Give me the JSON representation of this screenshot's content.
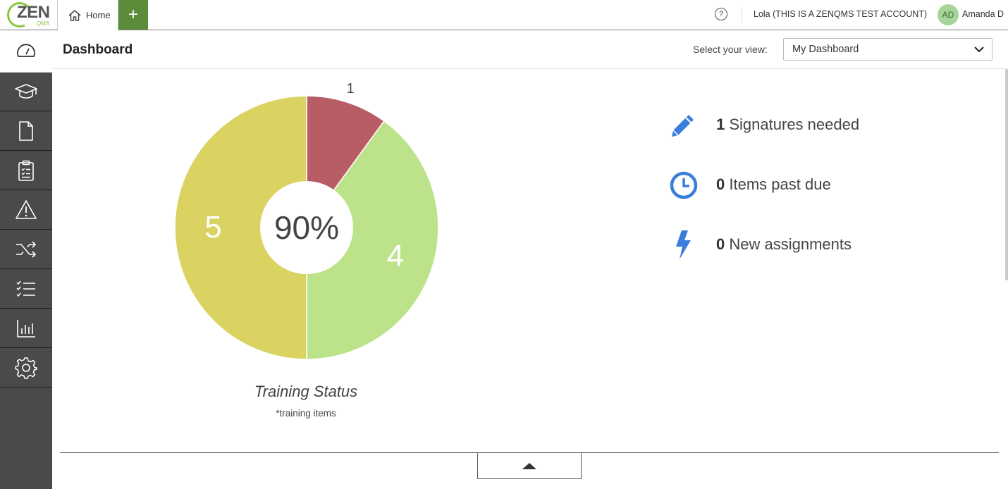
{
  "topbar": {
    "logo_text": "ZEN",
    "logo_sub": "QMS",
    "home_tab": "Home",
    "add_tab": "+",
    "help": "?",
    "account": "Lola (THIS IS A ZENQMS TEST ACCOUNT)",
    "avatar_initials": "AD",
    "user_name": "Amanda D"
  },
  "sidebar": {
    "items": [
      {
        "icon": "dashboard-icon",
        "active": true
      },
      {
        "icon": "graduation-cap-icon"
      },
      {
        "icon": "document-icon"
      },
      {
        "icon": "clipboard-icon"
      },
      {
        "icon": "warning-icon"
      },
      {
        "icon": "shuffle-icon"
      },
      {
        "icon": "checklist-icon"
      },
      {
        "icon": "bar-chart-icon"
      },
      {
        "icon": "gear-icon"
      }
    ]
  },
  "header": {
    "title": "Dashboard",
    "view_label": "Select your view:",
    "view_value": "My Dashboard"
  },
  "chart_data": {
    "type": "pie",
    "title": "Training Status",
    "subtitle": "*training items",
    "center_label": "90%",
    "slices": [
      {
        "label": "1",
        "value": 1,
        "color": "#b85c65"
      },
      {
        "label": "4",
        "value": 4,
        "color": "#bde38a"
      },
      {
        "label": "5",
        "value": 5,
        "color": "#dbd361"
      }
    ]
  },
  "stats": [
    {
      "count": "1",
      "label": "Signatures needed",
      "icon": "pencil-icon",
      "color": "#3b7ddd"
    },
    {
      "count": "0",
      "label": "Items past due",
      "icon": "clock-icon",
      "color": "#3b7ddd"
    },
    {
      "count": "0",
      "label": "New assignments",
      "icon": "lightning-icon",
      "color": "#3b7ddd"
    }
  ]
}
